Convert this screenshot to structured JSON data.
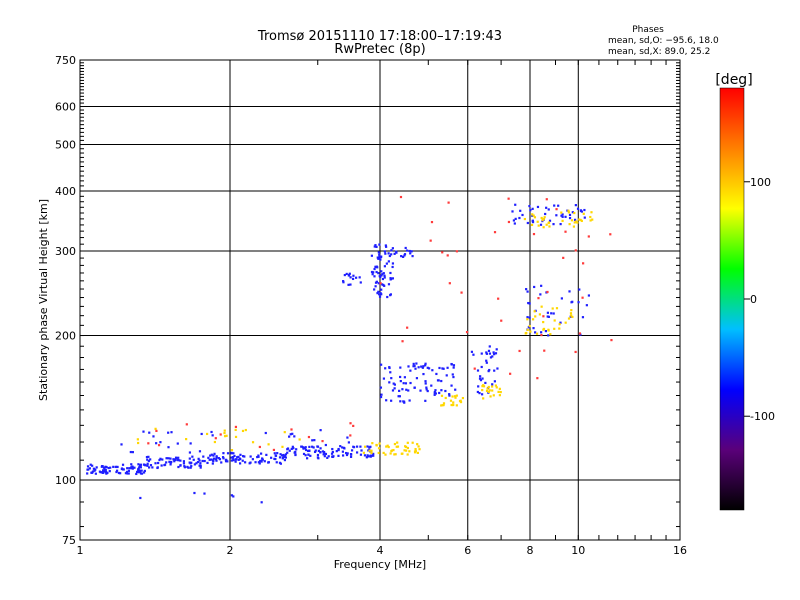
{
  "chart_data": {
    "type": "scatter",
    "title": "Tromsø 20151110 17:18:00–17:19:43",
    "subtitle": "RwPretec (8p)",
    "xlabel": "Frequency [MHz]",
    "ylabel": "Stationary phase Virtual Height [km]",
    "xscale": "log",
    "yscale": "log",
    "xlim": [
      1,
      16
    ],
    "ylim": [
      75,
      750
    ],
    "x_ticks": [
      1,
      2,
      4,
      6,
      8,
      10,
      16
    ],
    "y_ticks": [
      75,
      100,
      200,
      300,
      400,
      500,
      600,
      750
    ],
    "grid": true,
    "stats": {
      "title": "Phases",
      "line_o": "mean, sd,O:  −95.6, 18.0",
      "line_x": "mean, sd,X:  89.0, 25.2"
    },
    "colorbar": {
      "label": "[deg]",
      "range": [
        -180,
        180
      ],
      "ticks": [
        100,
        0,
        -100
      ],
      "stops": [
        "#000000",
        "#5a007a",
        "#0000ff",
        "#00bfff",
        "#00ff00",
        "#ffff00",
        "#ff8000",
        "#ff0000"
      ]
    },
    "series": [
      {
        "name": "O",
        "color": "#1f1fff",
        "clusters": [
          {
            "x": [
              1.03,
              1.35
            ],
            "y": [
              103,
              108
            ],
            "n": 90
          },
          {
            "x": [
              1.35,
              1.8
            ],
            "y": [
              106,
              112
            ],
            "n": 70
          },
          {
            "x": [
              1.8,
              2.6
            ],
            "y": [
              108,
              114
            ],
            "n": 90
          },
          {
            "x": [
              2.6,
              3.9
            ],
            "y": [
              111,
              118
            ],
            "n": 90
          },
          {
            "x": [
              1.2,
              3.8
            ],
            "y": [
              112,
              128
            ],
            "n": 40
          },
          {
            "x": [
              3.3,
              3.7
            ],
            "y": [
              255,
              270
            ],
            "n": 15
          },
          {
            "x": [
              3.85,
              4.25
            ],
            "y": [
              240,
              310
            ],
            "n": 70
          },
          {
            "x": [
              4.2,
              4.7
            ],
            "y": [
              290,
              305
            ],
            "n": 15
          },
          {
            "x": [
              4.0,
              5.0
            ],
            "y": [
              145,
              175
            ],
            "n": 60
          },
          {
            "x": [
              5.0,
              5.7
            ],
            "y": [
              150,
              175
            ],
            "n": 30
          },
          {
            "x": [
              6.1,
              6.9
            ],
            "y": [
              150,
              190
            ],
            "n": 35
          },
          {
            "x": [
              7.3,
              10.5
            ],
            "y": [
              340,
              375
            ],
            "n": 45
          },
          {
            "x": [
              7.8,
              10.5
            ],
            "y": [
              200,
              255
            ],
            "n": 35
          },
          {
            "x": [
              1.2,
              2.6
            ],
            "y": [
              85,
              97
            ],
            "n": 6
          }
        ]
      },
      {
        "name": "X",
        "color": "#ffd700",
        "clusters": [
          {
            "x": [
              3.7,
              4.8
            ],
            "y": [
              113,
              120
            ],
            "n": 45
          },
          {
            "x": [
              5.3,
              5.9
            ],
            "y": [
              142,
              150
            ],
            "n": 20
          },
          {
            "x": [
              6.4,
              7.0
            ],
            "y": [
              148,
              158
            ],
            "n": 20
          },
          {
            "x": [
              7.8,
              10.8
            ],
            "y": [
              335,
              365
            ],
            "n": 35
          },
          {
            "x": [
              7.8,
              9.8
            ],
            "y": [
              200,
              230
            ],
            "n": 30
          },
          {
            "x": [
              1.3,
              2.8
            ],
            "y": [
              115,
              130
            ],
            "n": 20
          }
        ]
      },
      {
        "name": "scatter",
        "color": "#ff3b3b",
        "clusters": [
          {
            "x": [
              4.0,
              12.0
            ],
            "y": [
              160,
              390
            ],
            "n": 40
          },
          {
            "x": [
              1.3,
              3.6
            ],
            "y": [
              112,
              132
            ],
            "n": 15
          }
        ]
      }
    ]
  }
}
